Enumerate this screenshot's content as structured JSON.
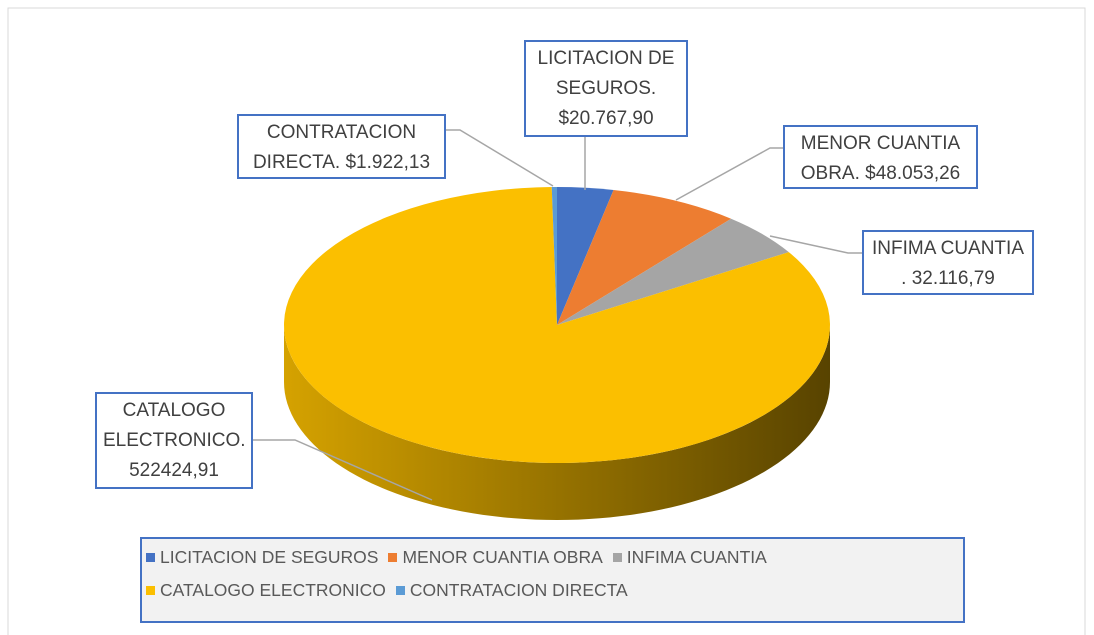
{
  "chart_data": {
    "type": "pie3d",
    "categories": [
      "LICITACION DE SEGUROS",
      "MENOR CUANTIA OBRA",
      "INFIMA CUANTIA",
      "CATALOGO ELECTRONICO",
      "CONTRATACION DIRECTA"
    ],
    "values": [
      20767.9,
      48053.26,
      32116.79,
      522424.91,
      1922.13
    ],
    "value_labels": [
      "LICITACION DE SEGUROS. $20.767,90",
      "MENOR CUANTIA OBRA. $48.053,26",
      "INFIMA CUANTIA . 32.116,79",
      "CATALOGO ELECTRONICO. 522424,91",
      "CONTRATACION DIRECTA. $1.922,13"
    ],
    "colors": [
      "#4472c4",
      "#ed7d31",
      "#a5a5a5",
      "#fbbf00",
      "#5b9bd5"
    ],
    "legend": "bottom"
  }
}
